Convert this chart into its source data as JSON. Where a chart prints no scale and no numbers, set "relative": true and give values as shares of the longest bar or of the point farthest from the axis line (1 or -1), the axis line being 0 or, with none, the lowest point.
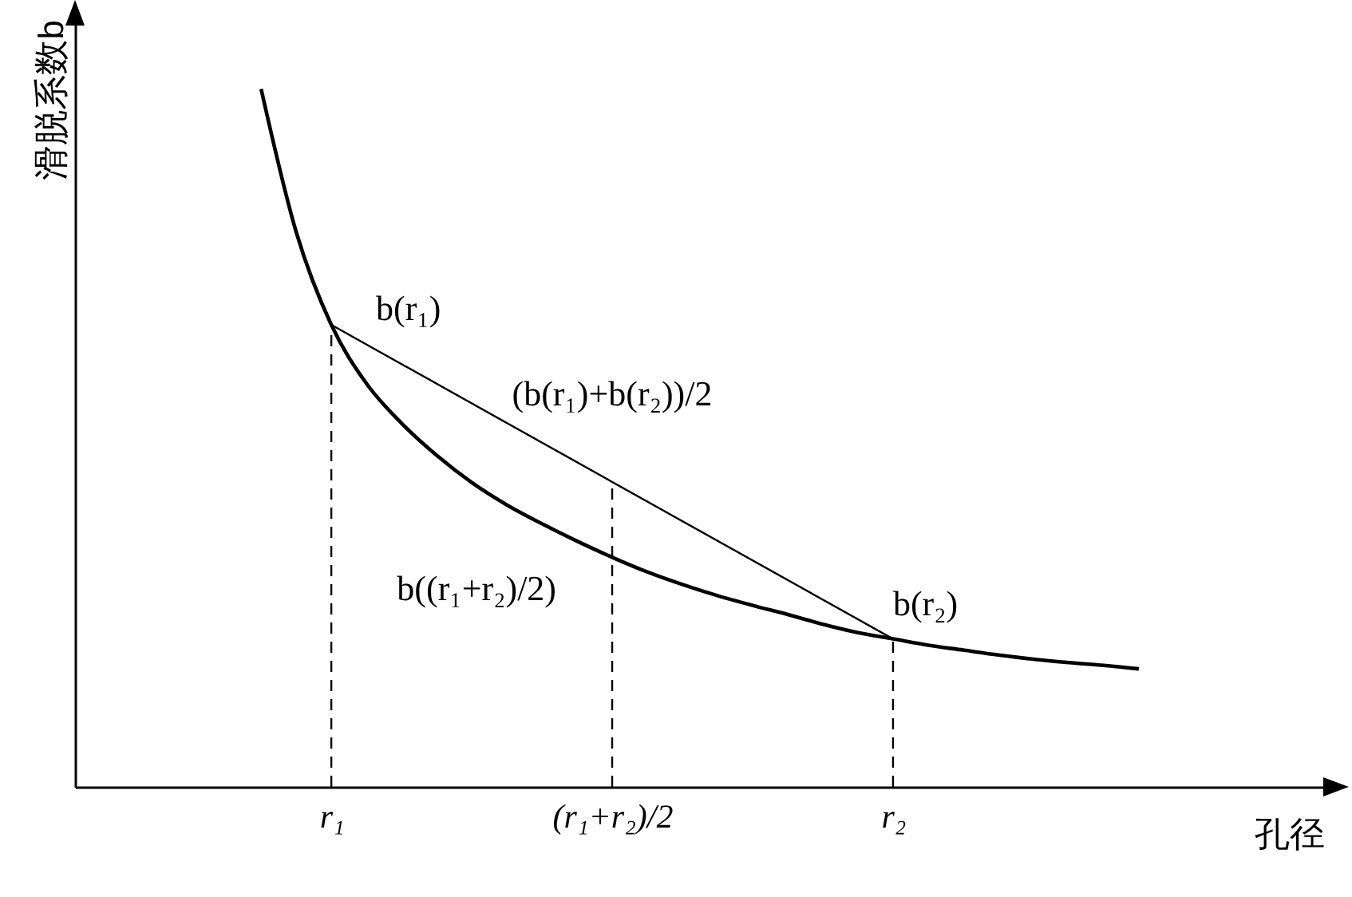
{
  "chart_data": {
    "type": "line",
    "relative": true,
    "ylabel": "滑脱系数b",
    "xlabel": "孔径",
    "categories": [
      null,
      null,
      "r₁",
      null,
      null,
      null,
      null,
      null,
      null,
      null,
      "(r₁+r₂)/2",
      null,
      null,
      null,
      null,
      null,
      null,
      null,
      "r₂",
      null,
      null,
      null,
      null,
      null,
      null,
      null
    ],
    "series": [
      {
        "color": "#000000",
        "values": [
          1.0,
          0.795,
          0.662,
          0.578,
          0.521,
          0.475,
          0.436,
          0.404,
          0.377,
          0.352,
          0.329,
          0.308,
          0.29,
          0.274,
          0.26,
          0.247,
          0.233,
          0.221,
          0.212,
          0.203,
          0.196,
          0.189,
          0.183,
          0.178,
          0.174,
          0.169
        ]
      },
      {
        "color": "#000000",
        "x": [
          "r₁",
          "r₂"
        ],
        "values": [
          0.662,
          0.212
        ]
      },
      {
        "color": "#000000",
        "line_style": "dashed",
        "x": [
          "r₁",
          "r₁"
        ],
        "values": [
          0,
          0.662
        ]
      },
      {
        "color": "#000000",
        "line_style": "dashed",
        "x": [
          "(r₁+r₂)/2",
          "(r₁+r₂)/2"
        ],
        "values": [
          0,
          0.437
        ]
      },
      {
        "color": "#000000",
        "line_style": "dashed",
        "x": [
          "r₂",
          "r₂"
        ],
        "values": [
          0,
          0.212
        ]
      }
    ],
    "annotations": [
      {
        "text": "b(r₁)",
        "x": "r₁",
        "y": 0.662
      },
      {
        "text": "(b(r₁)+b(r₂))/2",
        "x": "(r₁+r₂)/2",
        "y": 0.437
      },
      {
        "text": "b((r₁+r₂)/2)",
        "x": "(r₁+r₂)/2",
        "y": 0.329
      },
      {
        "text": "b(r₂)",
        "x": "r₂",
        "y": 0.212
      }
    ],
    "grid": false
  }
}
